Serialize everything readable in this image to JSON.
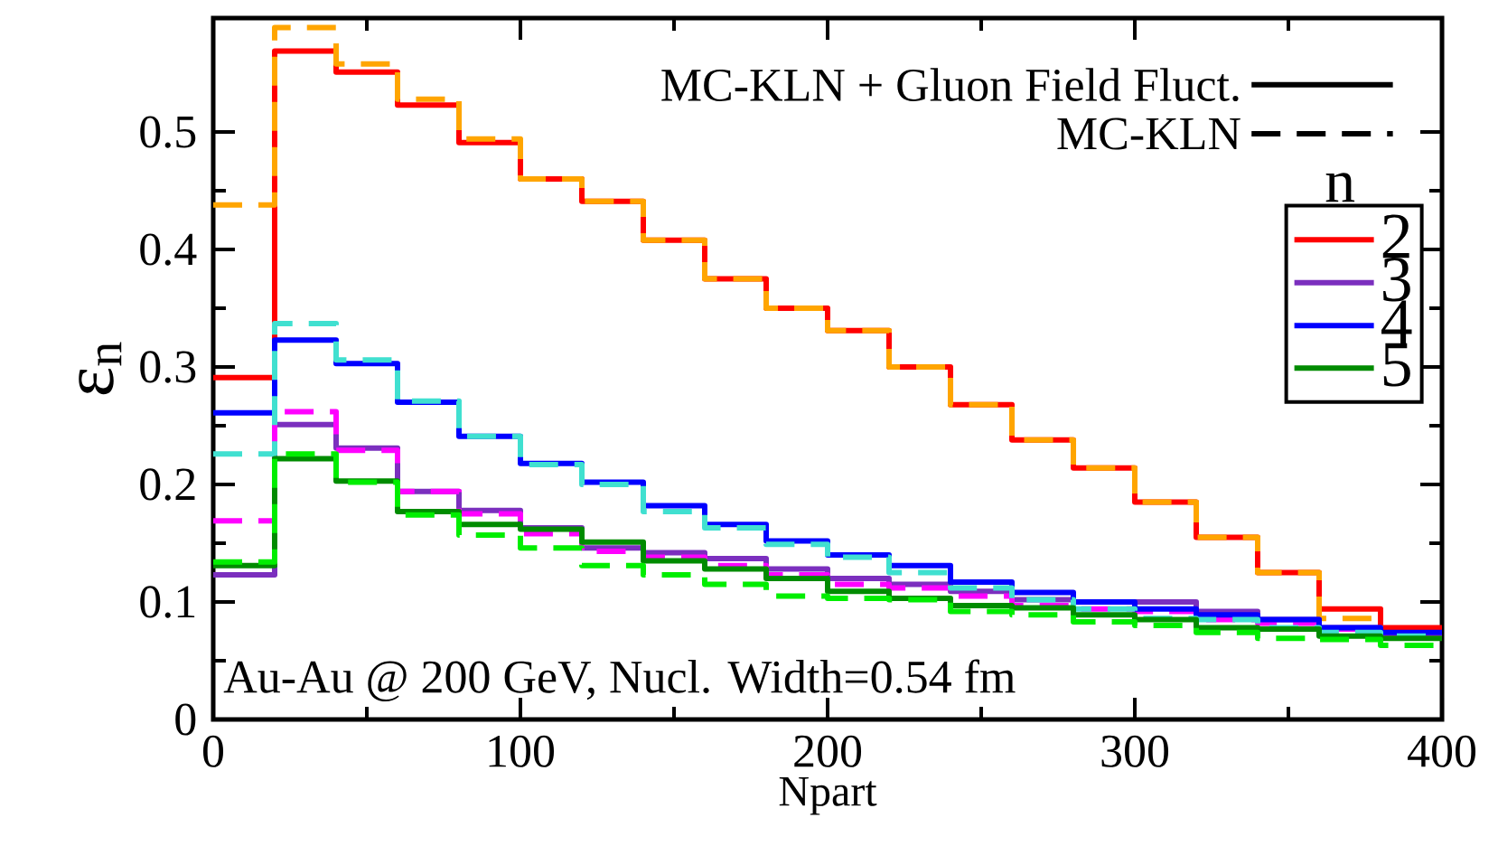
{
  "chart_data": {
    "type": "histogram",
    "xlabel": "Npart",
    "ylabel": "ε$_{n}$",
    "legend_title": "n",
    "bins": [
      0,
      20,
      40,
      60,
      80,
      100,
      120,
      140,
      160,
      180,
      200,
      220,
      240,
      260,
      280,
      300,
      320,
      340,
      360,
      380,
      400
    ],
    "series": [
      {
        "name": "2",
        "color": "#ff0000",
        "line_style": "solid",
        "values": [
          0.291,
          0.569,
          0.551,
          0.523,
          0.491,
          0.46,
          0.441,
          0.408,
          0.375,
          0.35,
          0.331,
          0.3,
          0.268,
          0.238,
          0.214,
          0.185,
          0.155,
          0.125,
          0.094,
          0.078
        ]
      },
      {
        "color": "#ffa500",
        "line_style": "dashed",
        "values": [
          0.438,
          0.589,
          0.558,
          0.528,
          0.494,
          0.46,
          0.441,
          0.408,
          0.375,
          0.35,
          0.331,
          0.3,
          0.268,
          0.238,
          0.214,
          0.185,
          0.155,
          0.125,
          0.086,
          0.071
        ]
      },
      {
        "name": "3",
        "color": "#7b2fbe",
        "line_style": "solid",
        "values": [
          0.123,
          0.251,
          0.231,
          0.194,
          0.178,
          0.163,
          0.146,
          0.142,
          0.137,
          0.128,
          0.12,
          0.115,
          0.109,
          0.102,
          0.1,
          0.1,
          0.092,
          0.085,
          0.078,
          0.071
        ]
      },
      {
        "color": "#ff00ff",
        "line_style": "dashed",
        "values": [
          0.169,
          0.262,
          0.229,
          0.194,
          0.175,
          0.158,
          0.143,
          0.138,
          0.131,
          0.123,
          0.115,
          0.112,
          0.105,
          0.097,
          0.094,
          0.092,
          0.085,
          0.082,
          0.077,
          0.071
        ]
      },
      {
        "name": "4",
        "color": "#0000ff",
        "line_style": "solid",
        "values": [
          0.261,
          0.323,
          0.303,
          0.27,
          0.241,
          0.218,
          0.202,
          0.182,
          0.166,
          0.152,
          0.14,
          0.131,
          0.117,
          0.108,
          0.1,
          0.094,
          0.089,
          0.085,
          0.078,
          0.074
        ]
      },
      {
        "color": "#40e0d0",
        "line_style": "dashed",
        "values": [
          0.226,
          0.337,
          0.306,
          0.271,
          0.241,
          0.217,
          0.2,
          0.177,
          0.163,
          0.149,
          0.138,
          0.125,
          0.112,
          0.102,
          0.094,
          0.086,
          0.085,
          0.078,
          0.074,
          0.071
        ]
      },
      {
        "name": "5",
        "color": "#008b00",
        "line_style": "solid",
        "values": [
          0.131,
          0.222,
          0.203,
          0.177,
          0.166,
          0.162,
          0.151,
          0.135,
          0.128,
          0.12,
          0.109,
          0.103,
          0.097,
          0.095,
          0.089,
          0.085,
          0.078,
          0.077,
          0.071,
          0.069
        ]
      },
      {
        "color": "#00ee00",
        "line_style": "dashed",
        "values": [
          0.134,
          0.226,
          0.202,
          0.174,
          0.157,
          0.146,
          0.131,
          0.123,
          0.115,
          0.105,
          0.103,
          0.102,
          0.092,
          0.089,
          0.083,
          0.08,
          0.074,
          0.069,
          0.068,
          0.063
        ]
      }
    ],
    "xlim": [
      0,
      400
    ],
    "ylim": [
      0,
      0.597
    ],
    "xticks": [
      0,
      100,
      200,
      300,
      400
    ],
    "yticks": [
      0,
      0.1,
      0.2,
      0.3,
      0.4,
      0.5
    ],
    "legend": "right",
    "annotations": [
      "MC-KLN + Gluon Field Fluct.",
      "MC-KLN",
      "Au-Au @ 200 GeV, Nucl. Width=0.54 fm"
    ]
  }
}
